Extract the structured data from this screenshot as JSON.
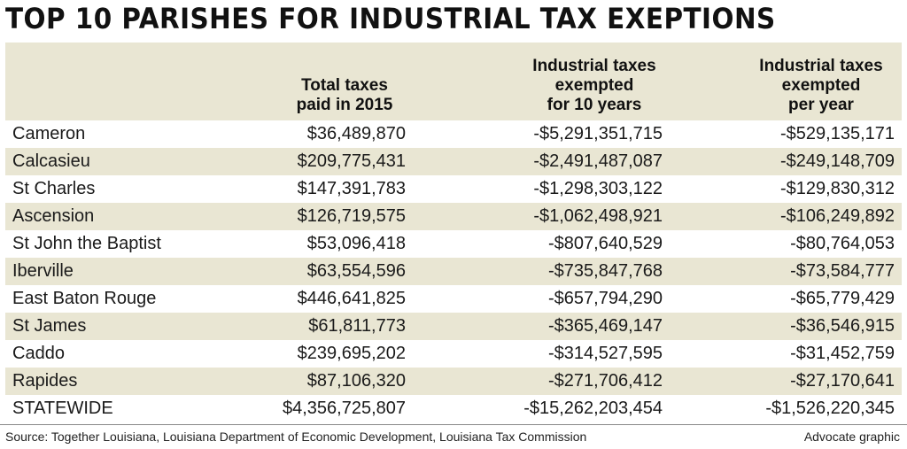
{
  "chart_data": {
    "type": "table",
    "title": "TOP 10 PARISHES FOR INDUSTRIAL TAX EXEPTIONS",
    "columns": [
      {
        "key": "parish",
        "label_lines": [
          ""
        ]
      },
      {
        "key": "total",
        "label_lines": [
          "Total taxes",
          "paid in 2015"
        ]
      },
      {
        "key": "ten_year",
        "label_lines": [
          "Industrial taxes",
          "exempted",
          "for 10 years"
        ]
      },
      {
        "key": "per_year",
        "label_lines": [
          "Industrial taxes",
          "exempted",
          "per year"
        ]
      }
    ],
    "rows": [
      {
        "parish": "Cameron",
        "total": "$36,489,870",
        "ten_year": "-$5,291,351,715",
        "per_year": "-$529,135,171"
      },
      {
        "parish": "Calcasieu",
        "total": "$209,775,431",
        "ten_year": "-$2,491,487,087",
        "per_year": "-$249,148,709"
      },
      {
        "parish": "St Charles",
        "total": "$147,391,783",
        "ten_year": "-$1,298,303,122",
        "per_year": "-$129,830,312"
      },
      {
        "parish": "Ascension",
        "total": "$126,719,575",
        "ten_year": "-$1,062,498,921",
        "per_year": "-$106,249,892"
      },
      {
        "parish": "St John the Baptist",
        "total": "$53,096,418",
        "ten_year": "-$807,640,529",
        "per_year": "-$80,764,053"
      },
      {
        "parish": "Iberville",
        "total": "$63,554,596",
        "ten_year": "-$735,847,768",
        "per_year": "-$73,584,777"
      },
      {
        "parish": "East Baton Rouge",
        "total": "$446,641,825",
        "ten_year": "-$657,794,290",
        "per_year": "-$65,779,429"
      },
      {
        "parish": "St James",
        "total": "$61,811,773",
        "ten_year": "-$365,469,147",
        "per_year": "-$36,546,915"
      },
      {
        "parish": "Caddo",
        "total": "$239,695,202",
        "ten_year": "-$314,527,595",
        "per_year": "-$31,452,759"
      },
      {
        "parish": "Rapides",
        "total": "$87,106,320",
        "ten_year": "-$271,706,412",
        "per_year": "-$27,170,641"
      },
      {
        "parish": "STATEWIDE",
        "total": "$4,356,725,807",
        "ten_year": "-$15,262,203,454",
        "per_year": "-$1,526,220,345"
      }
    ],
    "source": "Source: Together Louisiana, Louisiana Department of Economic Development, Louisiana Tax Commission",
    "credit": "Advocate graphic"
  },
  "colors": {
    "shade": "#e9e6d3",
    "text": "#1a1a1a"
  }
}
